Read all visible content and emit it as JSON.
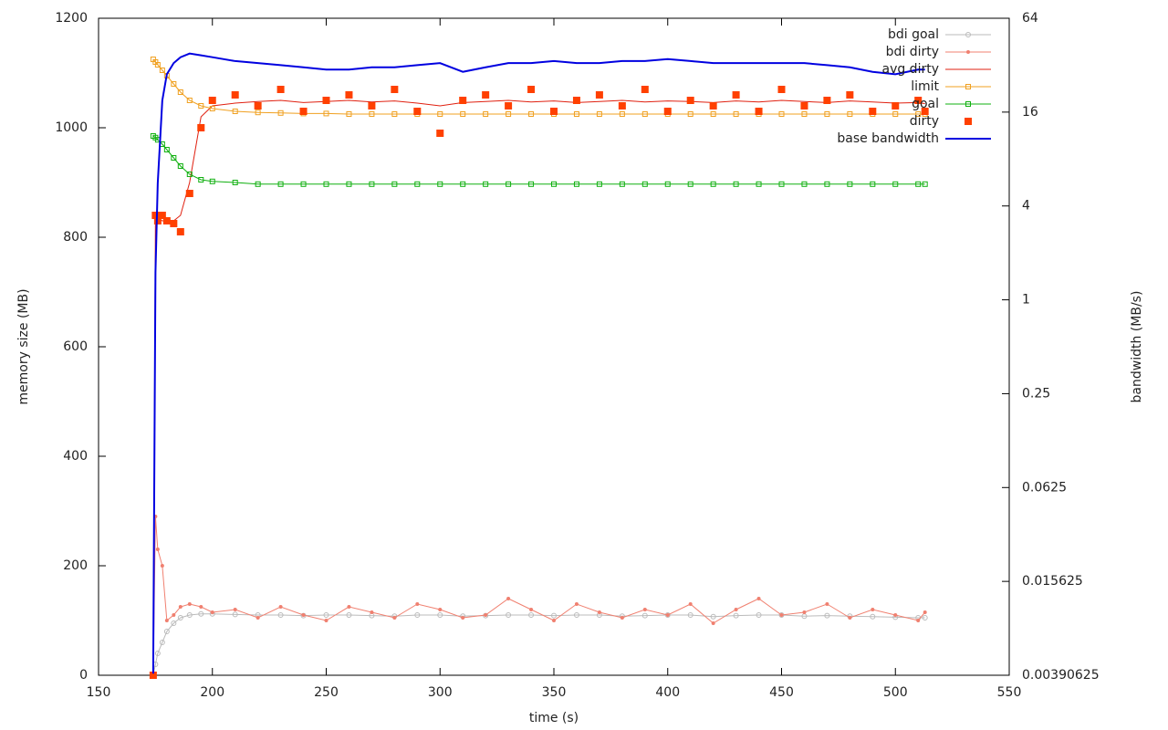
{
  "chart_data": {
    "type": "line",
    "xlabel": "time (s)",
    "ylabel": "memory size (MB)",
    "y2label": "bandwidth (MB/s)",
    "xlim": [
      150,
      550
    ],
    "xticks": [
      150,
      200,
      250,
      300,
      350,
      400,
      450,
      500,
      550
    ],
    "ylim": [
      0,
      1200
    ],
    "yticks": [
      0,
      200,
      400,
      600,
      800,
      1000,
      1200
    ],
    "y2lim": [
      0.00390625,
      64
    ],
    "y2ticks": [
      0.00390625,
      0.015625,
      0.0625,
      0.25,
      1,
      4,
      16,
      64
    ],
    "y2scale": "log",
    "legend": "upper right",
    "x": [
      174,
      175,
      176,
      178,
      180,
      183,
      186,
      190,
      195,
      200,
      210,
      220,
      230,
      240,
      250,
      260,
      270,
      280,
      290,
      300,
      310,
      320,
      330,
      340,
      350,
      360,
      370,
      380,
      390,
      400,
      410,
      420,
      430,
      440,
      450,
      460,
      470,
      480,
      490,
      500,
      510,
      513
    ],
    "series": [
      {
        "name": "bdi goal",
        "color": "#bbbbbb",
        "marker": "circle",
        "line": true,
        "values": [
          0,
          20,
          40,
          60,
          80,
          95,
          105,
          110,
          112,
          112,
          111,
          110,
          110,
          109,
          110,
          110,
          109,
          108,
          110,
          110,
          108,
          109,
          110,
          110,
          109,
          110,
          110,
          108,
          109,
          110,
          110,
          107,
          109,
          110,
          110,
          108,
          109,
          108,
          107,
          106,
          105,
          105
        ]
      },
      {
        "name": "bdi dirty",
        "color": "#f08070",
        "marker": "dot",
        "line": true,
        "values": [
          0,
          290,
          230,
          200,
          100,
          110,
          125,
          130,
          125,
          115,
          120,
          105,
          125,
          110,
          100,
          125,
          115,
          105,
          130,
          120,
          105,
          110,
          140,
          120,
          100,
          130,
          115,
          105,
          120,
          110,
          130,
          95,
          120,
          140,
          110,
          115,
          130,
          105,
          120,
          110,
          100,
          115
        ]
      },
      {
        "name": "avg dirty",
        "color": "#e02010",
        "marker": "none",
        "line": true,
        "values": [
          0,
          840,
          835,
          830,
          830,
          830,
          840,
          900,
          1020,
          1040,
          1045,
          1048,
          1050,
          1046,
          1048,
          1050,
          1047,
          1049,
          1045,
          1040,
          1046,
          1048,
          1050,
          1047,
          1049,
          1046,
          1048,
          1050,
          1047,
          1049,
          1048,
          1046,
          1049,
          1047,
          1050,
          1048,
          1046,
          1049,
          1047,
          1045,
          1046,
          1044
        ]
      },
      {
        "name": "limit",
        "color": "#f0a020",
        "marker": "square",
        "line": true,
        "values": [
          1125,
          1120,
          1115,
          1105,
          1095,
          1080,
          1065,
          1050,
          1040,
          1035,
          1030,
          1028,
          1027,
          1026,
          1026,
          1025,
          1025,
          1025,
          1025,
          1025,
          1025,
          1025,
          1025,
          1025,
          1025,
          1025,
          1025,
          1025,
          1025,
          1025,
          1025,
          1025,
          1025,
          1025,
          1025,
          1025,
          1025,
          1025,
          1025,
          1025,
          1025,
          1025
        ]
      },
      {
        "name": "goal",
        "color": "#10b010",
        "marker": "square",
        "line": true,
        "values": [
          985,
          982,
          978,
          970,
          960,
          945,
          930,
          915,
          905,
          902,
          900,
          897,
          897,
          897,
          897,
          897,
          897,
          897,
          897,
          897,
          897,
          897,
          897,
          897,
          897,
          897,
          897,
          897,
          897,
          897,
          897,
          897,
          897,
          897,
          897,
          897,
          897,
          897,
          897,
          897,
          897,
          897
        ]
      },
      {
        "name": "dirty",
        "color": "#ff4000",
        "marker": "filled-square",
        "line": false,
        "values": [
          0,
          840,
          830,
          840,
          830,
          825,
          810,
          880,
          1000,
          1050,
          1060,
          1040,
          1070,
          1030,
          1050,
          1060,
          1040,
          1070,
          1030,
          990,
          1050,
          1060,
          1040,
          1070,
          1030,
          1050,
          1060,
          1040,
          1070,
          1030,
          1050,
          1040,
          1060,
          1030,
          1070,
          1040,
          1050,
          1060,
          1030,
          1040,
          1050,
          1030
        ]
      },
      {
        "name": "base bandwidth",
        "color": "#0000e0",
        "marker": "none",
        "line": true,
        "axis": "y2",
        "values": [
          0.004,
          1.5,
          5.6,
          19,
          28,
          33,
          36,
          38,
          37,
          36,
          34,
          33,
          32,
          31,
          30,
          30,
          31,
          31,
          32,
          33,
          29,
          31,
          33,
          33,
          34,
          33,
          33,
          34,
          34,
          35,
          34,
          33,
          33,
          33,
          33,
          33,
          32,
          31,
          29,
          28,
          30,
          30
        ]
      }
    ]
  }
}
